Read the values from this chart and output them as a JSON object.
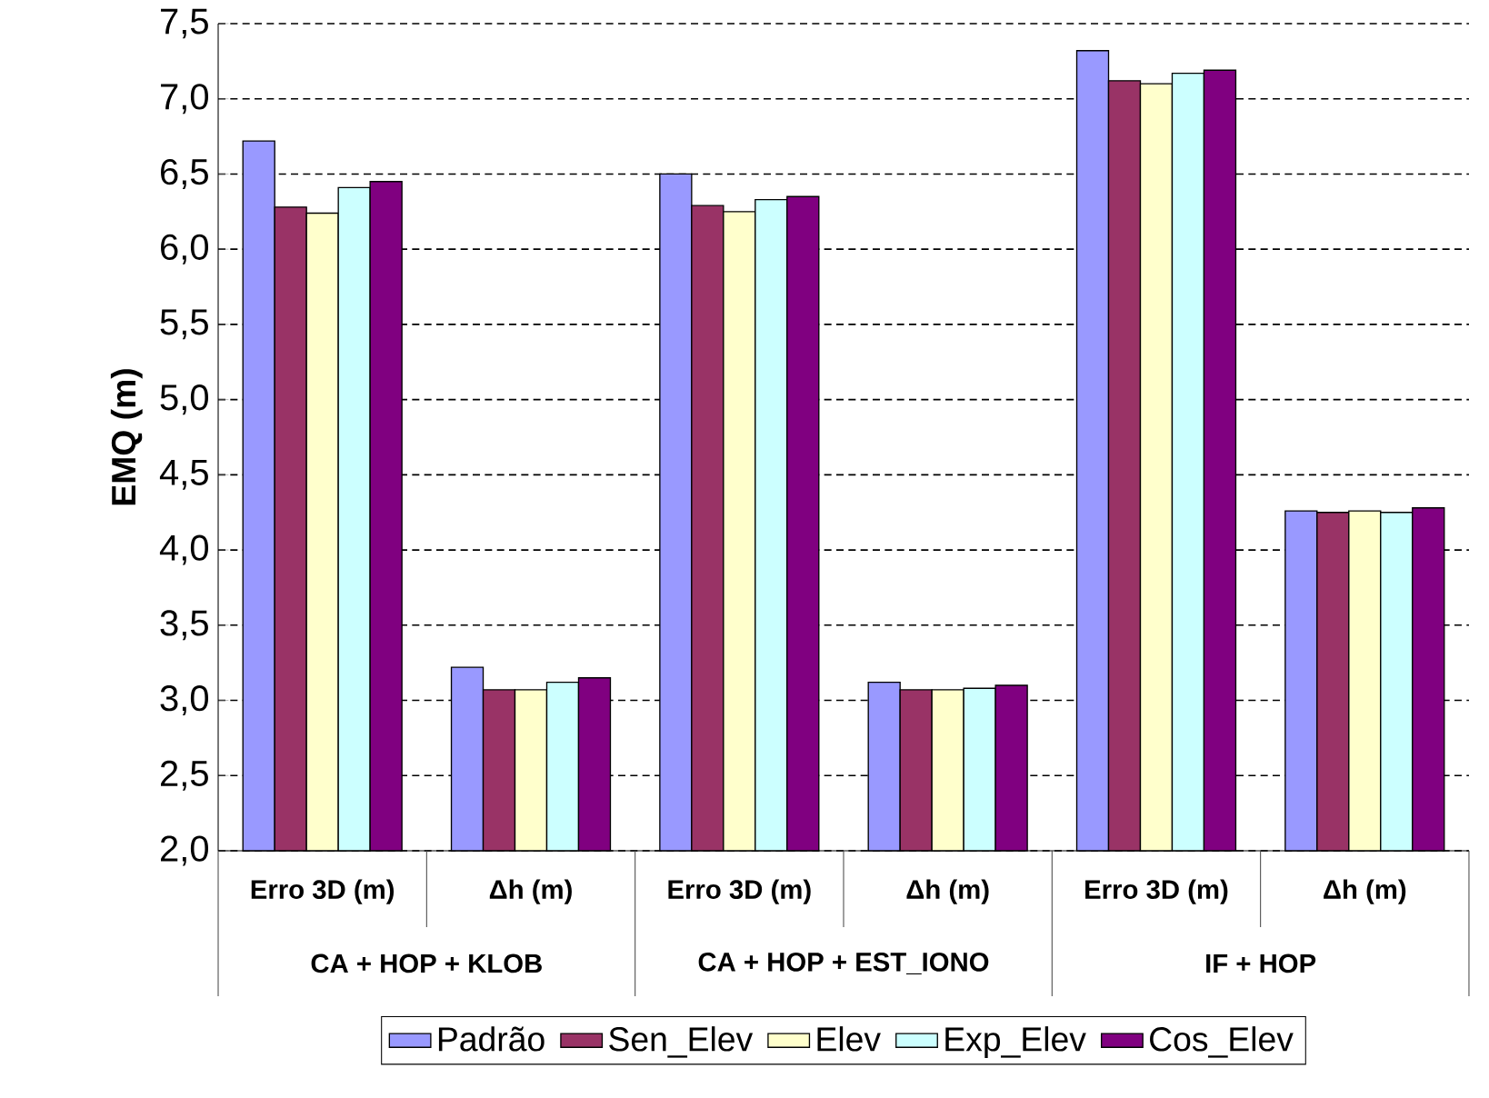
{
  "chart_data": {
    "type": "bar",
    "ylabel": "EMQ (m)",
    "categories": [
      "Erro 3D (m)",
      "Δh (m)",
      "Erro 3D (m)",
      "Δh (m)",
      "Erro 3D (m)",
      "Δh (m)"
    ],
    "annotations": [
      "CA + HOP + KLOB",
      "CA + HOP + EST_IONO",
      "IF + HOP"
    ],
    "series": [
      {
        "name": "Padrão",
        "color": "#9999ff",
        "values": [
          6.72,
          3.22,
          6.5,
          3.12,
          7.32,
          4.26
        ]
      },
      {
        "name": "Sen_Elev",
        "color": "#993366",
        "values": [
          6.28,
          3.07,
          6.29,
          3.07,
          7.12,
          4.25
        ]
      },
      {
        "name": "Elev",
        "color": "#ffffcc",
        "values": [
          6.24,
          3.07,
          6.25,
          3.07,
          7.1,
          4.26
        ]
      },
      {
        "name": "Exp_Elev",
        "color": "#ccffff",
        "values": [
          6.41,
          3.12,
          6.33,
          3.08,
          7.17,
          4.25
        ]
      },
      {
        "name": "Cos_Elev",
        "color": "#800080",
        "values": [
          6.45,
          3.15,
          6.35,
          3.1,
          7.19,
          4.28
        ]
      }
    ],
    "ylim": [
      2.0,
      7.5
    ],
    "yticks": [
      {
        "value": 2.0,
        "label": "2,0"
      },
      {
        "value": 2.5,
        "label": "2,5"
      },
      {
        "value": 3.0,
        "label": "3,0"
      },
      {
        "value": 3.5,
        "label": "3,5"
      },
      {
        "value": 4.0,
        "label": "4,0"
      },
      {
        "value": 4.5,
        "label": "4,5"
      },
      {
        "value": 5.0,
        "label": "5,0"
      },
      {
        "value": 5.5,
        "label": "5,5"
      },
      {
        "value": 6.0,
        "label": "6,0"
      },
      {
        "value": 6.5,
        "label": "6,5"
      },
      {
        "value": 7.0,
        "label": "7,0"
      },
      {
        "value": 7.5,
        "label": "7,5"
      }
    ],
    "grid": "y",
    "legend": "bottom"
  }
}
